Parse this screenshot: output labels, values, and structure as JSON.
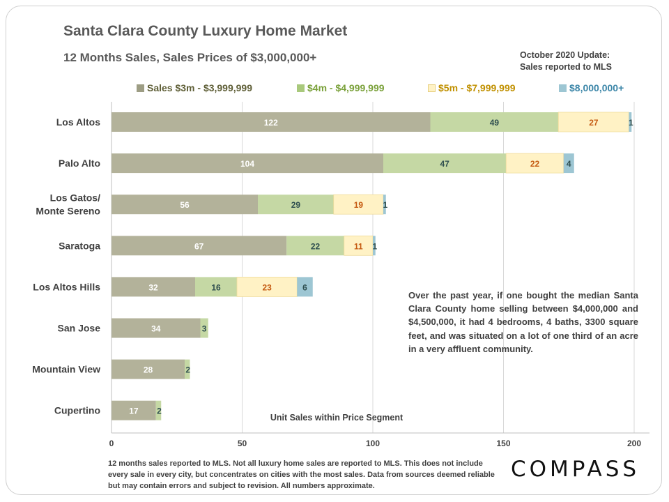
{
  "header": {
    "title": "Santa Clara County Luxury Home Market",
    "subtitle": "12 Months Sales, Sales Prices of $3,000,000+",
    "update_line1": "October 2020 Update:",
    "update_line2": "Sales reported to MLS"
  },
  "annotation": "Over the past year, if one bought the median Santa Clara County home selling between $4,000,000 and $4,500,000, it had 4 bedrooms, 4 baths, 3300 square feet, and was situated on a lot of one third of an acre in a very affluent community.",
  "footnote": "12 months sales reported to MLS. Not all luxury home sales are reported to MLS. This does not include every sale in every city, but concentrates on cities with the most sales. Data from sources deemed reliable but may contain errors and subject to revision. All numbers approximate.",
  "logo": "COMPASS",
  "colors": {
    "s1": "#b3b29a",
    "s2": "#c5d8a4",
    "s3": "#fff2c5",
    "s4": "#9dc6d3",
    "legend1": "#5e5e36",
    "legend2": "#7aa13a",
    "legend3": "#c09000",
    "legend4": "#3c86a8",
    "label_light": "#ffffff",
    "label_dark": "#2f4f4f",
    "label_orange": "#c55a11"
  },
  "chart_data": {
    "type": "bar",
    "orientation": "horizontal",
    "stacked": true,
    "categories": [
      [
        "Los Altos"
      ],
      [
        "Palo Alto"
      ],
      [
        "Los Gatos/",
        "Monte Sereno"
      ],
      [
        "Saratoga"
      ],
      [
        "Los Altos Hills"
      ],
      [
        "San Jose"
      ],
      [
        "Mountain View"
      ],
      [
        "Cupertino"
      ]
    ],
    "series": [
      {
        "name": "Sales $3m - $3,999,999",
        "values": [
          122,
          104,
          56,
          67,
          32,
          34,
          28,
          17
        ]
      },
      {
        "name": "$4m - $4,999,999",
        "values": [
          49,
          47,
          29,
          22,
          16,
          3,
          2,
          2
        ]
      },
      {
        "name": "$5m - $7,999,999",
        "values": [
          27,
          22,
          19,
          11,
          23,
          0,
          0,
          0
        ]
      },
      {
        "name": "$8,000,000+",
        "values": [
          1,
          4,
          1,
          1,
          6,
          0,
          0,
          0
        ]
      }
    ],
    "xlabel": "Unit Sales within Price Segment",
    "xlim": [
      0,
      205
    ],
    "xticks": [
      0,
      50,
      100,
      150,
      200
    ],
    "grid": true,
    "legend_position": "top"
  }
}
